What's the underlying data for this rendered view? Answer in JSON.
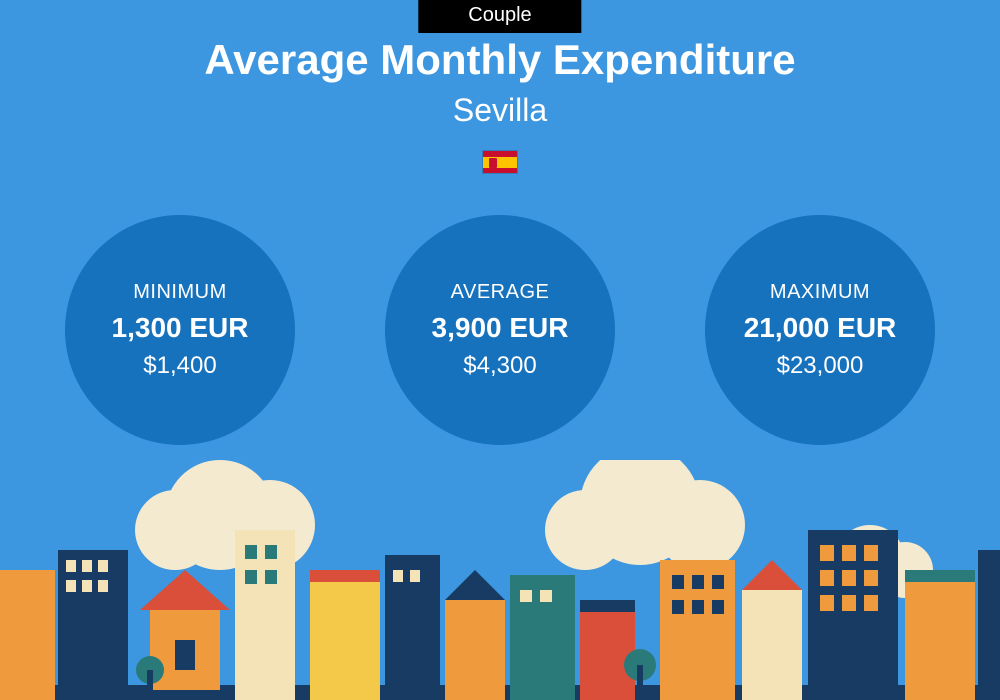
{
  "tag": "Couple",
  "title": "Average Monthly Expenditure",
  "city": "Sevilla",
  "flag": {
    "top_color": "#c8102e",
    "mid_color": "#ffc400",
    "bot_color": "#c8102e"
  },
  "colors": {
    "page_bg": "#3d96e0",
    "circle_bg": "#1772be",
    "text": "#ffffff",
    "tag_bg": "#000000"
  },
  "stats": [
    {
      "label": "MINIMUM",
      "primary": "1,300 EUR",
      "secondary": "$1,400"
    },
    {
      "label": "AVERAGE",
      "primary": "3,900 EUR",
      "secondary": "$4,300"
    },
    {
      "label": "MAXIMUM",
      "primary": "21,000 EUR",
      "secondary": "$23,000"
    }
  ],
  "skyline_palette": {
    "cloud": "#f4ead0",
    "orange": "#f09a3e",
    "red": "#d94f3a",
    "navy": "#173b63",
    "teal": "#2a7a7a",
    "cream": "#f5e3b8",
    "yellow": "#f4c94a",
    "dark": "#0f2a45"
  }
}
